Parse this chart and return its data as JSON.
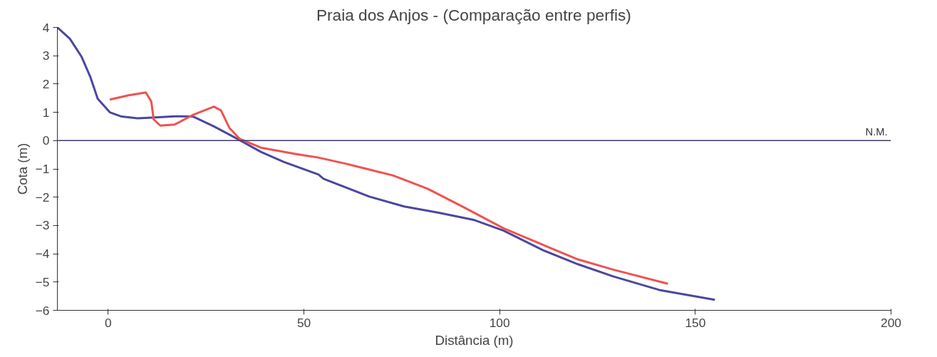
{
  "chart_data": {
    "type": "line",
    "title": "Praia dos Anjos - (Comparação entre perfis)",
    "xlabel": "Distância (m)",
    "ylabel": "Cota (m)",
    "xlim": [
      -13,
      200
    ],
    "xticks": [
      0,
      50,
      100,
      150,
      200
    ],
    "ylim": [
      -6,
      4
    ],
    "yticks": [
      -6,
      -5,
      -4,
      -3,
      -2,
      -1,
      0,
      1,
      2,
      3,
      4
    ],
    "grid": false,
    "line_style": "solid",
    "marker": "none",
    "ref_lines": [
      {
        "axis": "y",
        "value": 0,
        "label": "N.M.",
        "color": "#3c3a6a"
      }
    ],
    "series": [
      {
        "color": "#4b47a0",
        "x": [
          -13,
          -9.8,
          -6.8,
          -4.6,
          -2.7,
          0.4,
          3.4,
          7.5,
          12.2,
          17,
          21.7,
          27,
          33,
          39,
          44.8,
          53.7,
          55,
          66.7,
          75.6,
          84.4,
          93.3,
          101,
          111,
          120,
          129,
          140.8,
          155
        ],
        "values": [
          4.0,
          3.6,
          2.96,
          2.26,
          1.48,
          1.0,
          0.85,
          0.79,
          0.82,
          0.86,
          0.85,
          0.5,
          0.06,
          -0.4,
          -0.75,
          -1.2,
          -1.35,
          -1.98,
          -2.33,
          -2.55,
          -2.8,
          -3.18,
          -3.87,
          -4.37,
          -4.8,
          -5.28,
          -5.63
        ]
      },
      {
        "color": "#f0524f",
        "x": [
          0.4,
          5.2,
          9.6,
          11,
          11.6,
          13.3,
          17,
          21.7,
          27,
          28.8,
          31,
          33.6,
          39,
          47.8,
          53.7,
          60.8,
          72.7,
          81.6,
          90.5,
          101,
          120,
          129,
          143
        ],
        "values": [
          1.45,
          1.6,
          1.7,
          1.38,
          0.75,
          0.53,
          0.57,
          0.91,
          1.2,
          1.07,
          0.44,
          0.06,
          -0.25,
          -0.47,
          -0.6,
          -0.82,
          -1.23,
          -1.7,
          -2.33,
          -3.1,
          -4.2,
          -4.56,
          -5.06
        ]
      }
    ]
  }
}
